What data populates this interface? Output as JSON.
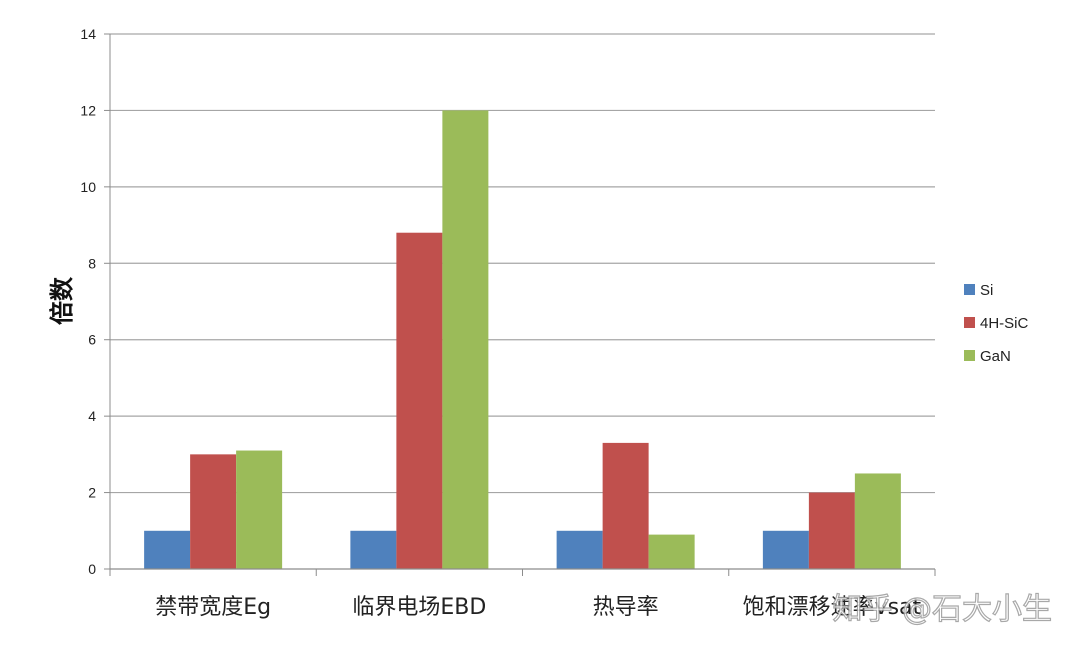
{
  "chart_data": {
    "type": "bar",
    "title": "",
    "xlabel": "",
    "ylabel": "倍数",
    "ylim": [
      0,
      14
    ],
    "yticks": [
      0,
      2,
      4,
      6,
      8,
      10,
      12,
      14
    ],
    "grid": true,
    "legend_position": "right",
    "categories": [
      "禁带宽度Eg",
      "临界电场EBD",
      "热导率",
      "饱和漂移速率vsat"
    ],
    "series": [
      {
        "name": "Si",
        "color": "#4F81BD",
        "values": [
          1,
          1,
          1,
          1
        ]
      },
      {
        "name": "4H-SiC",
        "color": "#C0504D",
        "values": [
          3.0,
          8.8,
          3.3,
          2.0
        ]
      },
      {
        "name": "GaN",
        "color": "#9BBB59",
        "values": [
          3.1,
          12.0,
          0.9,
          2.5
        ]
      }
    ]
  },
  "watermark": "知乎 @石大小生"
}
